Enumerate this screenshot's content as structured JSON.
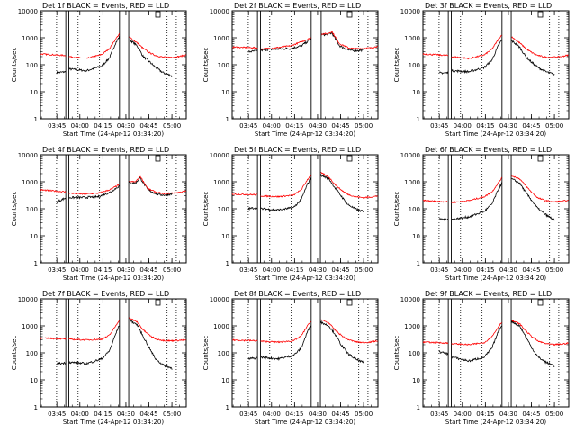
{
  "common": {
    "title_suffix": "BLACK = Events, RED = LLD",
    "xlabel": "Start Time (24-Apr-12 03:34:20)",
    "ylabel": "Counts/sec",
    "x_ticks": [
      "03:45",
      "04:00",
      "04:15",
      "04:30",
      "04:45",
      "05:00"
    ],
    "y_ticks": [
      "1",
      "10",
      "100",
      "1000",
      "10000"
    ]
  },
  "colors": {
    "events": "#000000",
    "lld": "#ff0000"
  },
  "chart_data": [
    {
      "type": "line",
      "title": "Det 1f",
      "x_units": "minutes after 03:34:20",
      "xlim": [
        0,
        95
      ],
      "ylim": [
        1,
        10000
      ],
      "yscale": "log",
      "solid_lines": [
        16.5,
        18.5,
        51.5,
        57.5
      ],
      "dotted_lines": [
        10.5,
        24.5,
        38.5,
        82.5,
        88.5
      ],
      "gaps": [
        [
          16.5,
          18.5
        ],
        [
          51.5,
          57.5
        ]
      ],
      "series": [
        {
          "name": "Events",
          "x": [
            10.5,
            16.5,
            18.5,
            30,
            40,
            45,
            49,
            51.5,
            57.5,
            63,
            67,
            71,
            75,
            80,
            85,
            86
          ],
          "y": [
            50,
            55,
            70,
            60,
            90,
            180,
            650,
            1100,
            900,
            500,
            200,
            130,
            80,
            50,
            40,
            35
          ]
        },
        {
          "name": "LLD",
          "x": [
            0,
            16.5,
            18.5,
            30,
            40,
            45,
            49,
            51.5,
            57.5,
            63,
            67,
            71,
            75,
            80,
            85,
            90,
            95
          ],
          "y": [
            250,
            220,
            200,
            170,
            240,
            400,
            900,
            1400,
            1100,
            650,
            400,
            280,
            220,
            190,
            190,
            200,
            230
          ]
        }
      ]
    },
    {
      "type": "line",
      "title": "Det 2f",
      "x_units": "minutes after 03:34:20",
      "xlim": [
        0,
        95
      ],
      "ylim": [
        1,
        10000
      ],
      "yscale": "log",
      "solid_lines": [
        16.5,
        18.5,
        51.5,
        58
      ],
      "dotted_lines": [
        10.5,
        24.5,
        38.5,
        82.5,
        88.5
      ],
      "gaps": [
        [
          16.5,
          18.5
        ],
        [
          51.5,
          58
        ]
      ],
      "series": [
        {
          "name": "Events",
          "x": [
            10.5,
            16.5,
            18.5,
            28,
            38,
            45,
            51.5,
            58,
            62,
            65,
            70,
            76,
            80,
            85,
            86
          ],
          "y": [
            300,
            330,
            350,
            380,
            400,
            500,
            900,
            1300,
            1300,
            1500,
            500,
            350,
            330,
            350,
            350
          ]
        },
        {
          "name": "LLD",
          "x": [
            0,
            16.5,
            18.5,
            28,
            38,
            45,
            51.5,
            58,
            62,
            65,
            70,
            76,
            80,
            85,
            90,
            95
          ],
          "y": [
            450,
            420,
            380,
            420,
            500,
            700,
            1000,
            1400,
            1400,
            1700,
            600,
            420,
            390,
            400,
            420,
            480
          ]
        }
      ]
    },
    {
      "type": "line",
      "title": "Det 3f",
      "x_units": "minutes after 03:34:20",
      "xlim": [
        0,
        95
      ],
      "ylim": [
        1,
        10000
      ],
      "yscale": "log",
      "solid_lines": [
        16.5,
        18.5,
        51.5,
        57.5
      ],
      "dotted_lines": [
        10.5,
        24.5,
        38.5,
        82.5,
        88.5
      ],
      "gaps": [
        [
          16.5,
          18.5
        ],
        [
          51.5,
          57.5
        ]
      ],
      "series": [
        {
          "name": "Events",
          "x": [
            10.5,
            16.5,
            18.5,
            30,
            40,
            45,
            49,
            51.5,
            57.5,
            63,
            67,
            71,
            75,
            80,
            85,
            86
          ],
          "y": [
            50,
            50,
            60,
            55,
            80,
            150,
            500,
            850,
            800,
            450,
            200,
            120,
            80,
            55,
            45,
            40
          ]
        },
        {
          "name": "LLD",
          "x": [
            0,
            16.5,
            18.5,
            30,
            40,
            45,
            49,
            51.5,
            57.5,
            63,
            67,
            71,
            75,
            80,
            85,
            90,
            95
          ],
          "y": [
            250,
            220,
            200,
            170,
            230,
            380,
            850,
            1300,
            1100,
            650,
            400,
            280,
            220,
            190,
            190,
            200,
            230
          ]
        }
      ]
    },
    {
      "type": "line",
      "title": "Det 4f",
      "x_units": "minutes after 03:34:20",
      "xlim": [
        0,
        95
      ],
      "ylim": [
        1,
        10000
      ],
      "yscale": "log",
      "solid_lines": [
        16.5,
        18.5,
        51.5,
        57.5
      ],
      "dotted_lines": [
        10.5,
        24.5,
        38.5,
        82.5,
        88.5
      ],
      "gaps": [
        [
          16.5,
          18.5
        ],
        [
          51.5,
          57.5
        ]
      ],
      "series": [
        {
          "name": "Events",
          "x": [
            10.5,
            16.5,
            18.5,
            28,
            38,
            45,
            51.5,
            57.5,
            62,
            65,
            70,
            76,
            80,
            85,
            86
          ],
          "y": [
            180,
            250,
            260,
            260,
            280,
            400,
            700,
            900,
            900,
            1400,
            500,
            350,
            320,
            350,
            350
          ]
        },
        {
          "name": "LLD",
          "x": [
            0,
            16.5,
            18.5,
            28,
            38,
            45,
            51.5,
            57.5,
            62,
            65,
            70,
            76,
            80,
            85,
            90,
            95
          ],
          "y": [
            500,
            420,
            380,
            350,
            380,
            500,
            800,
            1000,
            1000,
            1600,
            550,
            400,
            360,
            380,
            400,
            450
          ]
        }
      ]
    },
    {
      "type": "line",
      "title": "Det 5f",
      "x_units": "minutes after 03:34:20",
      "xlim": [
        0,
        95
      ],
      "ylim": [
        1,
        10000
      ],
      "yscale": "log",
      "solid_lines": [
        16.5,
        18.5,
        51.5,
        57.5
      ],
      "dotted_lines": [
        10.5,
        24.5,
        38.5,
        82.5,
        88.5
      ],
      "gaps": [
        [
          16.5,
          18.5
        ],
        [
          51.5,
          57.5
        ]
      ],
      "series": [
        {
          "name": "Events",
          "x": [
            10.5,
            16.5,
            18.5,
            30,
            40,
            45,
            49,
            51.5,
            57.5,
            63,
            67,
            71,
            75,
            80,
            85,
            86
          ],
          "y": [
            100,
            110,
            100,
            90,
            110,
            220,
            800,
            1400,
            1800,
            1300,
            600,
            300,
            150,
            100,
            80,
            70
          ]
        },
        {
          "name": "LLD",
          "x": [
            0,
            16.5,
            18.5,
            30,
            40,
            45,
            49,
            51.5,
            57.5,
            63,
            67,
            71,
            75,
            80,
            85,
            90,
            95
          ],
          "y": [
            350,
            330,
            300,
            280,
            320,
            500,
            1200,
            1800,
            2200,
            1500,
            800,
            500,
            350,
            280,
            260,
            270,
            300
          ]
        }
      ]
    },
    {
      "type": "line",
      "title": "Det 6f",
      "x_units": "minutes after 03:34:20",
      "xlim": [
        0,
        95
      ],
      "ylim": [
        1,
        10000
      ],
      "yscale": "log",
      "solid_lines": [
        16.5,
        18.5,
        51.5,
        57.5
      ],
      "dotted_lines": [
        10.5,
        24.5,
        38.5,
        82.5,
        88.5
      ],
      "gaps": [
        [
          16.5,
          18.5
        ],
        [
          51.5,
          57.5
        ]
      ],
      "series": [
        {
          "name": "Events",
          "x": [
            10.5,
            16.5,
            18.5,
            30,
            40,
            45,
            49,
            51.5,
            57.5,
            63,
            67,
            71,
            75,
            80,
            85,
            86
          ],
          "y": [
            40,
            42,
            40,
            50,
            80,
            150,
            500,
            900,
            1300,
            900,
            400,
            200,
            100,
            60,
            40,
            35
          ]
        },
        {
          "name": "LLD",
          "x": [
            0,
            16.5,
            18.5,
            30,
            40,
            45,
            49,
            51.5,
            57.5,
            63,
            67,
            71,
            75,
            80,
            85,
            90,
            95
          ],
          "y": [
            200,
            180,
            170,
            200,
            280,
            420,
            900,
            1400,
            1700,
            1300,
            700,
            400,
            250,
            200,
            180,
            190,
            200
          ]
        }
      ]
    },
    {
      "type": "line",
      "title": "Det 7f",
      "x_units": "minutes after 03:34:20",
      "xlim": [
        0,
        95
      ],
      "ylim": [
        1,
        10000
      ],
      "yscale": "log",
      "solid_lines": [
        16.5,
        18.5,
        51.5,
        57.5
      ],
      "dotted_lines": [
        10.5,
        24.5,
        38.5,
        82.5,
        88.5
      ],
      "gaps": [
        [
          16.5,
          18.5
        ],
        [
          51.5,
          57.5
        ]
      ],
      "series": [
        {
          "name": "Events",
          "x": [
            10.5,
            16.5,
            18.5,
            30,
            40,
            45,
            49,
            51.5,
            57.5,
            63,
            67,
            71,
            75,
            80,
            85,
            86
          ],
          "y": [
            40,
            42,
            45,
            40,
            60,
            120,
            500,
            1100,
            1700,
            1100,
            400,
            150,
            60,
            35,
            28,
            25
          ]
        },
        {
          "name": "LLD",
          "x": [
            0,
            16.5,
            18.5,
            30,
            40,
            45,
            49,
            51.5,
            57.5,
            63,
            67,
            71,
            75,
            80,
            85,
            90,
            95
          ],
          "y": [
            350,
            330,
            320,
            300,
            320,
            450,
            1000,
            1700,
            2000,
            1400,
            700,
            450,
            330,
            290,
            280,
            290,
            300
          ]
        }
      ]
    },
    {
      "type": "line",
      "title": "Det 8f",
      "x_units": "minutes after 03:34:20",
      "xlim": [
        0,
        95
      ],
      "ylim": [
        1,
        10000
      ],
      "yscale": "log",
      "solid_lines": [
        16.5,
        18.5,
        51.5,
        57.5
      ],
      "dotted_lines": [
        10.5,
        24.5,
        38.5,
        82.5,
        88.5
      ],
      "gaps": [
        [
          16.5,
          18.5
        ],
        [
          51.5,
          57.5
        ]
      ],
      "series": [
        {
          "name": "Events",
          "x": [
            10.5,
            16.5,
            18.5,
            30,
            40,
            45,
            49,
            51.5,
            57.5,
            63,
            67,
            71,
            75,
            80,
            85,
            86
          ],
          "y": [
            60,
            65,
            70,
            60,
            80,
            150,
            600,
            1100,
            1400,
            1000,
            500,
            200,
            100,
            60,
            45,
            40
          ]
        },
        {
          "name": "LLD",
          "x": [
            0,
            16.5,
            18.5,
            30,
            40,
            45,
            49,
            51.5,
            57.5,
            63,
            67,
            71,
            75,
            80,
            85,
            90,
            95
          ],
          "y": [
            300,
            280,
            270,
            250,
            280,
            420,
            1000,
            1500,
            1700,
            1300,
            700,
            450,
            320,
            260,
            240,
            250,
            280
          ]
        }
      ]
    },
    {
      "type": "line",
      "title": "Det 9f",
      "x_units": "minutes after 03:34:20",
      "xlim": [
        0,
        95
      ],
      "ylim": [
        1,
        10000
      ],
      "yscale": "log",
      "solid_lines": [
        16.5,
        18.5,
        51.5,
        57.5
      ],
      "dotted_lines": [
        10.5,
        24.5,
        38.5,
        82.5,
        88.5
      ],
      "gaps": [
        [
          16.5,
          18.5
        ],
        [
          51.5,
          57.5
        ]
      ],
      "series": [
        {
          "name": "Events",
          "x": [
            10.5,
            16.5,
            18.5,
            30,
            40,
            45,
            49,
            51.5,
            57.5,
            63,
            67,
            71,
            75,
            80,
            85,
            86
          ],
          "y": [
            110,
            90,
            70,
            50,
            70,
            150,
            600,
            1100,
            1500,
            1000,
            400,
            150,
            70,
            45,
            35,
            30
          ]
        },
        {
          "name": "LLD",
          "x": [
            0,
            16.5,
            18.5,
            30,
            40,
            45,
            49,
            51.5,
            57.5,
            63,
            67,
            71,
            75,
            80,
            85,
            90,
            95
          ],
          "y": [
            250,
            230,
            220,
            200,
            240,
            400,
            900,
            1400,
            1600,
            1200,
            650,
            400,
            270,
            220,
            200,
            210,
            230
          ]
        }
      ]
    }
  ]
}
